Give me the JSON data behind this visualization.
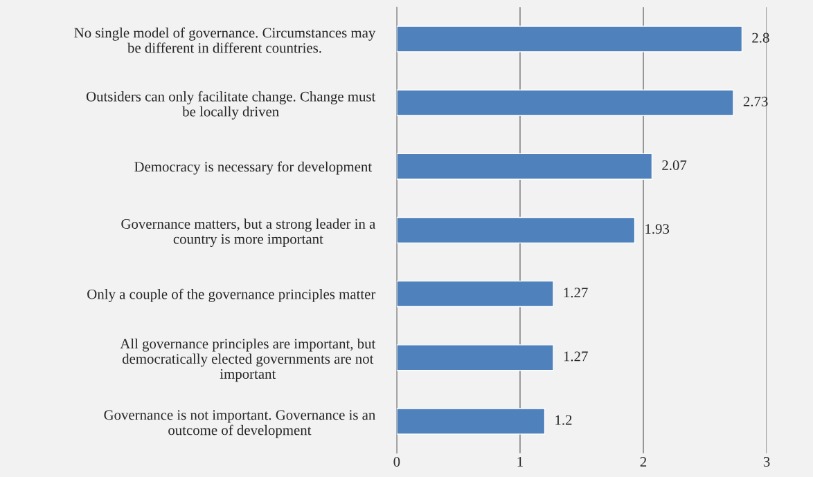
{
  "chart_data": {
    "type": "bar",
    "orientation": "horizontal",
    "categories": [
      "No single model of governance. Circumstances may\nbe different in different countries.",
      "Outsiders can only facilitate change. Change must\nbe locally driven",
      "Democracy is necessary for development ",
      "Governance matters, but a strong leader in a\ncountry is more important",
      "Only a couple of the governance principles matter",
      "All governance principles are important, but\ndemocratically elected governments are not\nimportant",
      "Governance is not important. Governance is an\noutcome of development"
    ],
    "values": [
      2.8,
      2.73,
      2.07,
      1.93,
      1.27,
      1.27,
      1.2
    ],
    "color": "#4f81bd",
    "xlim": [
      0,
      3
    ],
    "xticks": [
      0,
      1,
      2,
      3
    ],
    "grid": "x",
    "data_labels": true,
    "legend": false
  }
}
